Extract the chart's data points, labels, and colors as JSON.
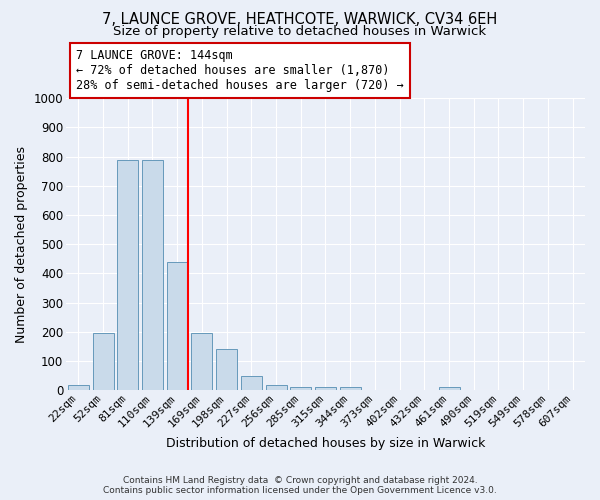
{
  "title1": "7, LAUNCE GROVE, HEATHCOTE, WARWICK, CV34 6EH",
  "title2": "Size of property relative to detached houses in Warwick",
  "xlabel": "Distribution of detached houses by size in Warwick",
  "ylabel": "Number of detached properties",
  "categories": [
    "22sqm",
    "52sqm",
    "81sqm",
    "110sqm",
    "139sqm",
    "169sqm",
    "198sqm",
    "227sqm",
    "256sqm",
    "285sqm",
    "315sqm",
    "344sqm",
    "373sqm",
    "402sqm",
    "432sqm",
    "461sqm",
    "490sqm",
    "519sqm",
    "549sqm",
    "578sqm",
    "607sqm"
  ],
  "values": [
    18,
    197,
    790,
    790,
    440,
    197,
    140,
    50,
    18,
    10,
    10,
    10,
    0,
    0,
    0,
    10,
    0,
    0,
    0,
    0,
    0
  ],
  "bar_color": "#c9daea",
  "bar_edge_color": "#6699bb",
  "annotation_text": "7 LAUNCE GROVE: 144sqm\n← 72% of detached houses are smaller (1,870)\n28% of semi-detached houses are larger (720) →",
  "annotation_box_facecolor": "#ffffff",
  "annotation_box_edgecolor": "#cc0000",
  "ylim": [
    0,
    1000
  ],
  "yticks": [
    0,
    100,
    200,
    300,
    400,
    500,
    600,
    700,
    800,
    900,
    1000
  ],
  "bg_color": "#eaeff8",
  "grid_color": "#ffffff",
  "title1_fontsize": 10.5,
  "title2_fontsize": 9.5,
  "axis_label_fontsize": 9,
  "tick_fontsize": 8,
  "footer_text": "Contains HM Land Registry data  © Crown copyright and database right 2024.\nContains public sector information licensed under the Open Government Licence v3.0.",
  "footer_fontsize": 6.5
}
